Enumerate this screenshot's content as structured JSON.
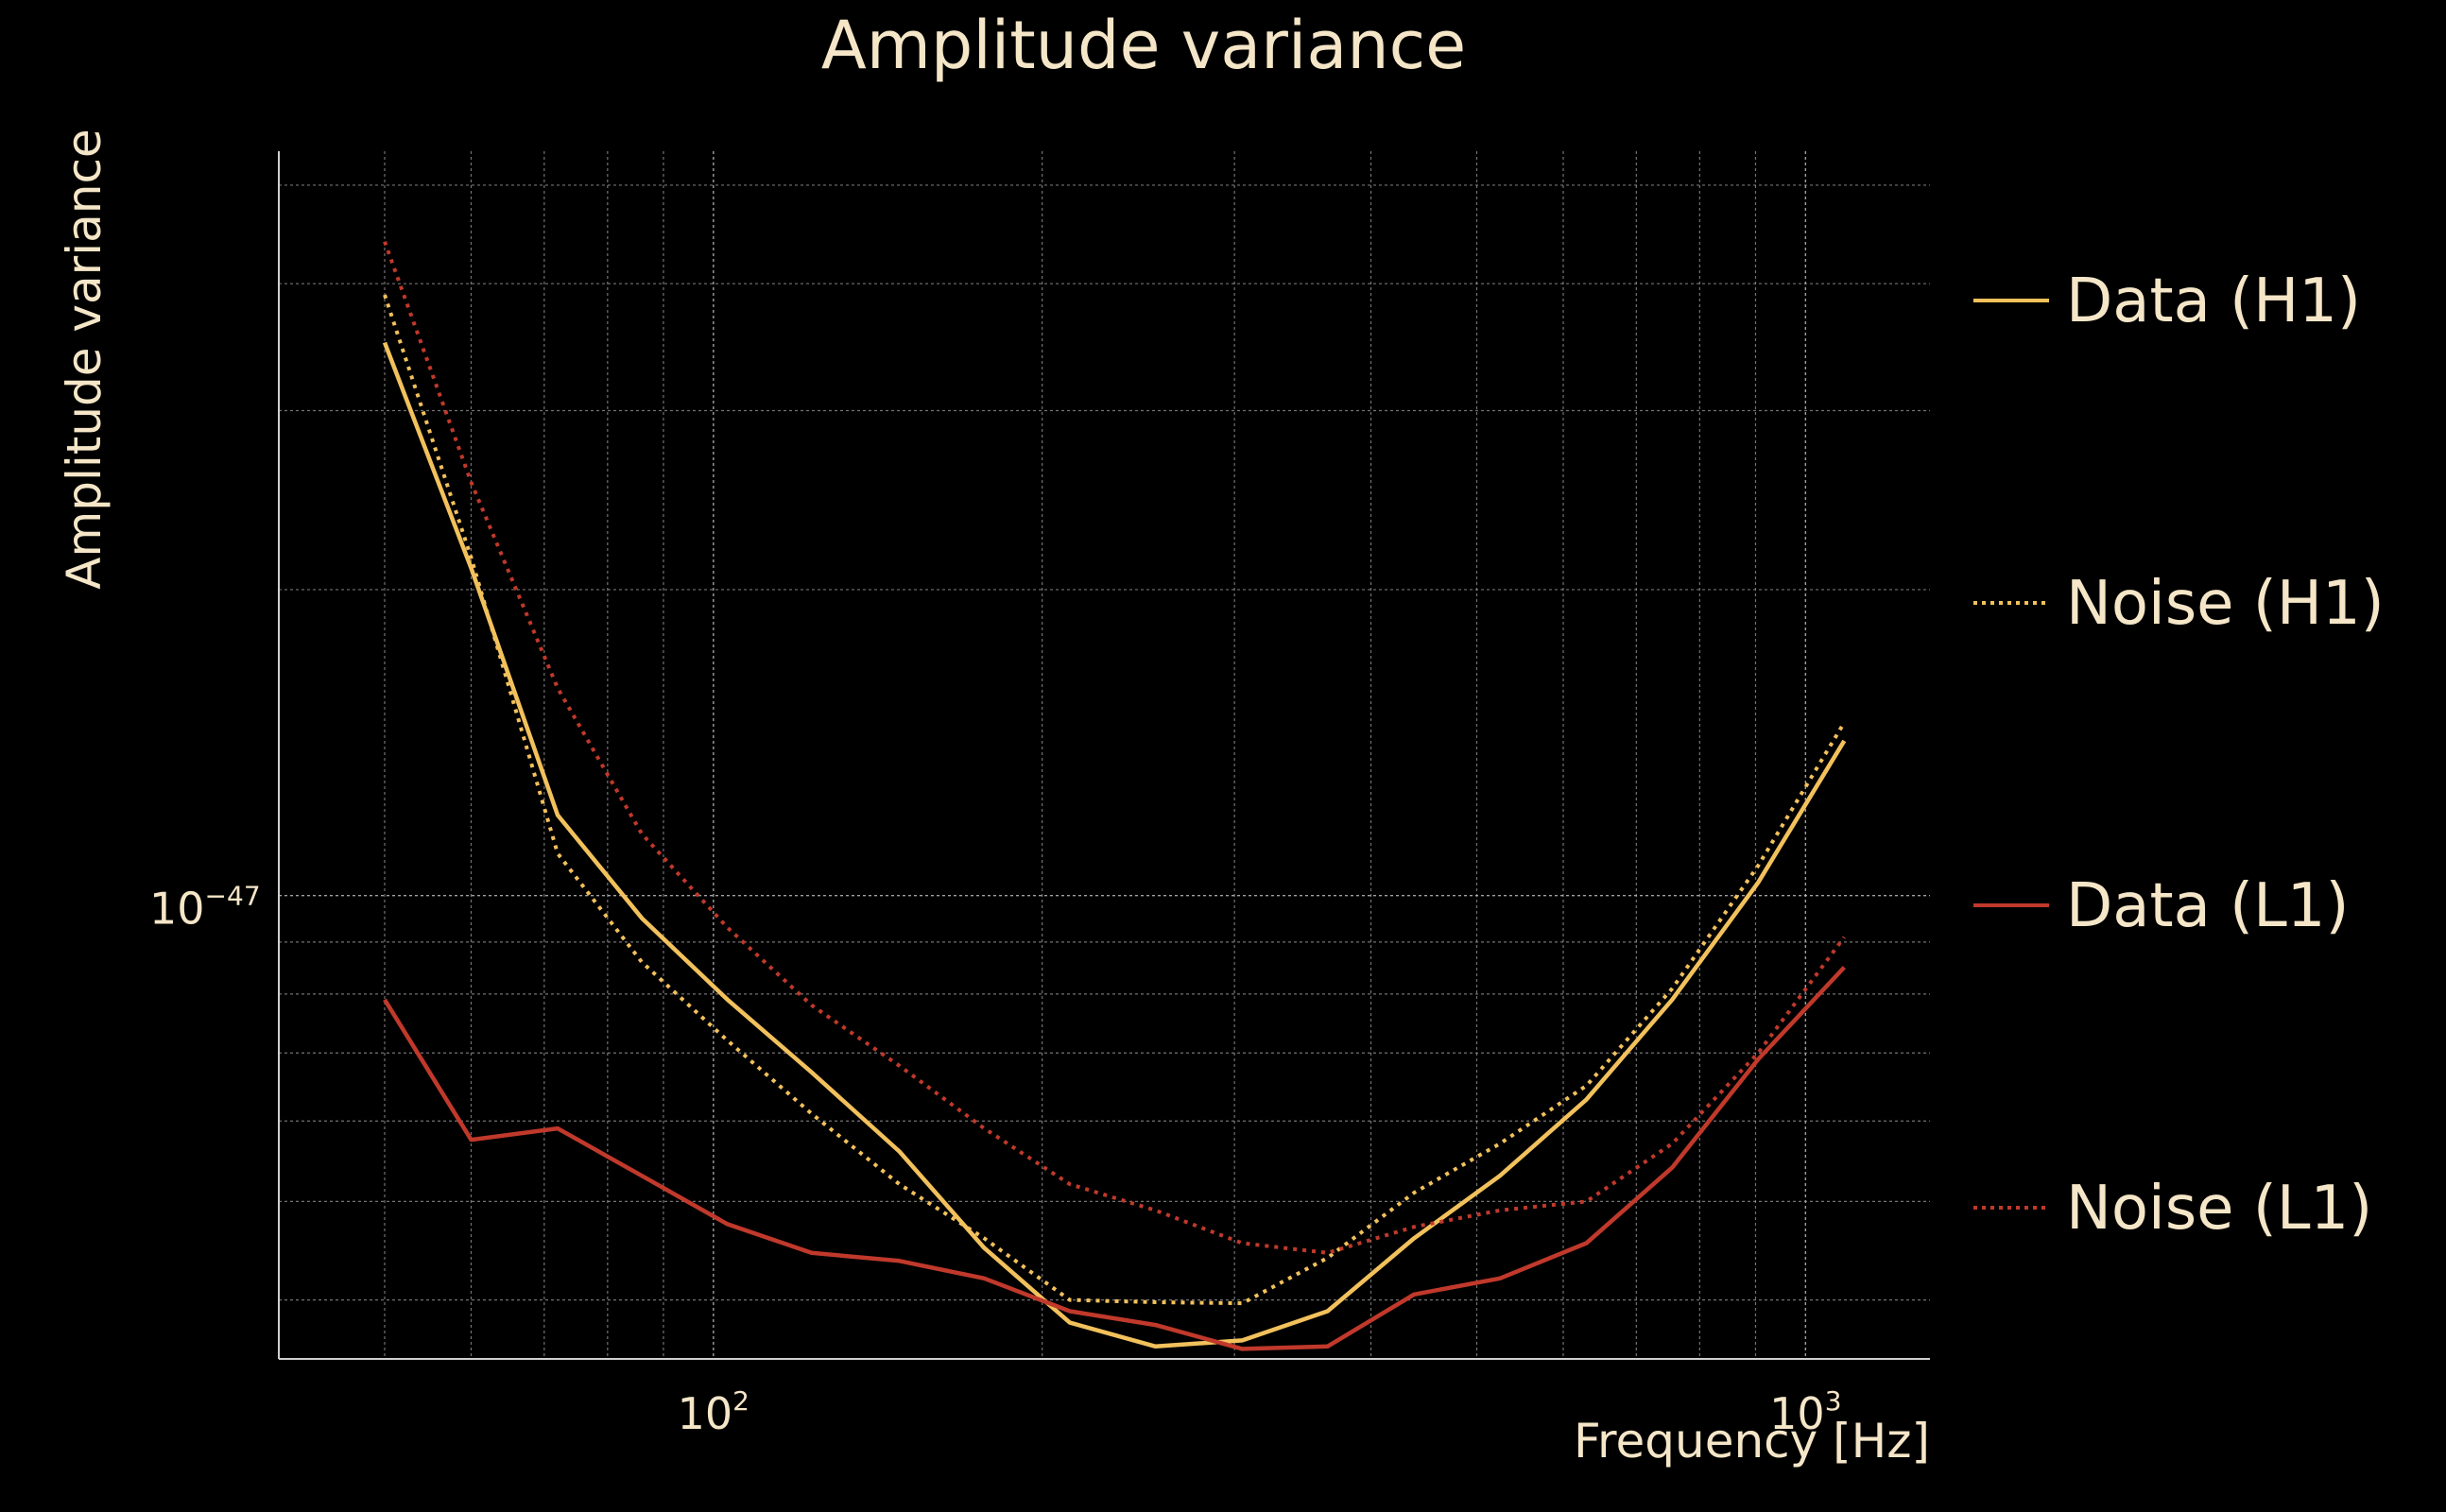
{
  "chart_data": {
    "type": "line",
    "title": "Amplitude variance",
    "xlabel": "Frequency [Hz]",
    "ylabel": "Amplitude variance",
    "x_scale": "log",
    "y_scale": "log",
    "xlim": [
      40,
      1300
    ],
    "ylim": [
      3.5e-48,
      5.4e-47
    ],
    "x_ticks": [
      {
        "base": "10",
        "exp": "2",
        "value": 100
      },
      {
        "base": "10",
        "exp": "3",
        "value": 1000
      }
    ],
    "y_ticks": [
      {
        "base": "10",
        "exp": "−47",
        "value": 1e-47
      }
    ],
    "grid": true,
    "legend_position": "right",
    "x": [
      50,
      60,
      72,
      86,
      103,
      123,
      148,
      177,
      212,
      254,
      305,
      365,
      438,
      525,
      630,
      755,
      905,
      1085
    ],
    "series": [
      {
        "name": "Data (H1)",
        "color": "#f2c15c",
        "style": "solid",
        "values": [
          3.5e-47,
          2.1e-47,
          1.2e-47,
          9.5e-48,
          7.9e-48,
          6.7e-48,
          5.6e-48,
          4.5e-48,
          3.8e-48,
          3.6e-48,
          3.65e-48,
          3.9e-48,
          4.6e-48,
          5.3e-48,
          6.3e-48,
          7.9e-48,
          1.03e-47,
          1.42e-47
        ]
      },
      {
        "name": "Noise (H1)",
        "color": "#f2c15c",
        "style": "dotted",
        "values": [
          3.9e-47,
          2.15e-47,
          1.1e-47,
          8.6e-48,
          7.2e-48,
          6.1e-48,
          5.2e-48,
          4.6e-48,
          4e-48,
          3.98e-48,
          3.97e-48,
          4.4e-48,
          5.1e-48,
          5.7e-48,
          6.5e-48,
          8.1e-48,
          1.07e-47,
          1.48e-47
        ]
      },
      {
        "name": "Data (L1)",
        "color": "#c0392b",
        "style": "solid",
        "values": [
          7.9e-48,
          5.75e-48,
          5.9e-48,
          5.3e-48,
          4.75e-48,
          4.45e-48,
          4.37e-48,
          4.2e-48,
          3.9e-48,
          3.78e-48,
          3.58e-48,
          3.6e-48,
          4.05e-48,
          4.2e-48,
          4.55e-48,
          5.4e-48,
          6.9e-48,
          8.5e-48
        ]
      },
      {
        "name": "Noise (L1)",
        "color": "#c0392b",
        "style": "dotted",
        "values": [
          4.4e-47,
          2.55e-47,
          1.6e-47,
          1.15e-47,
          9.3e-48,
          7.8e-48,
          6.8e-48,
          5.9e-48,
          5.2e-48,
          4.9e-48,
          4.55e-48,
          4.45e-48,
          4.72e-48,
          4.9e-48,
          5e-48,
          5.7e-48,
          7e-48,
          9.1e-48
        ]
      }
    ]
  }
}
